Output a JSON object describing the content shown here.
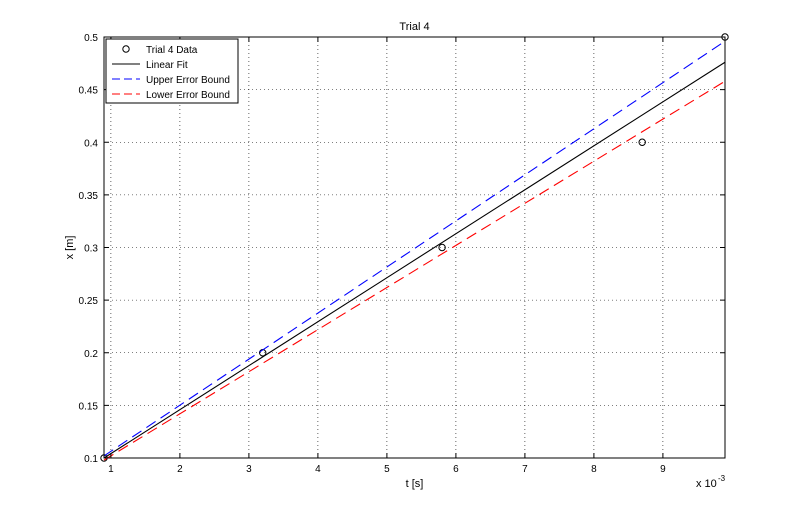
{
  "chart_data": {
    "type": "line",
    "title": "Trial 4",
    "xlabel": "t [s]",
    "ylabel": "x [m]",
    "x_multiplier": "x 10",
    "x_multiplier_exponent": "-3",
    "xlim": [
      0.9,
      9.9
    ],
    "ylim": [
      0.1,
      0.5
    ],
    "grid": true,
    "legend_position": "top-left",
    "x_ticks": [
      1,
      2,
      3,
      4,
      5,
      6,
      7,
      8,
      9
    ],
    "y_ticks": [
      0.1,
      0.15,
      0.2,
      0.25,
      0.3,
      0.35,
      0.4,
      0.45,
      0.5
    ],
    "series": [
      {
        "name": "Trial 4 Data",
        "style": "markers",
        "marker": "circle",
        "color": "#000000",
        "x": [
          0.9,
          3.2,
          5.8,
          8.7,
          9.9
        ],
        "y": [
          0.1,
          0.2,
          0.3,
          0.4,
          0.5
        ]
      },
      {
        "name": "Linear Fit",
        "style": "solid",
        "color": "#000000",
        "x": [
          0.9,
          9.9
        ],
        "y": [
          0.1,
          0.476
        ]
      },
      {
        "name": "Upper Error Bound",
        "style": "dashed",
        "color": "#0000ff",
        "x": [
          0.9,
          9.9
        ],
        "y": [
          0.102,
          0.496
        ]
      },
      {
        "name": "Lower Error Bound",
        "style": "dashed",
        "color": "#ff0000",
        "x": [
          0.9,
          9.9
        ],
        "y": [
          0.098,
          0.458
        ]
      }
    ]
  }
}
